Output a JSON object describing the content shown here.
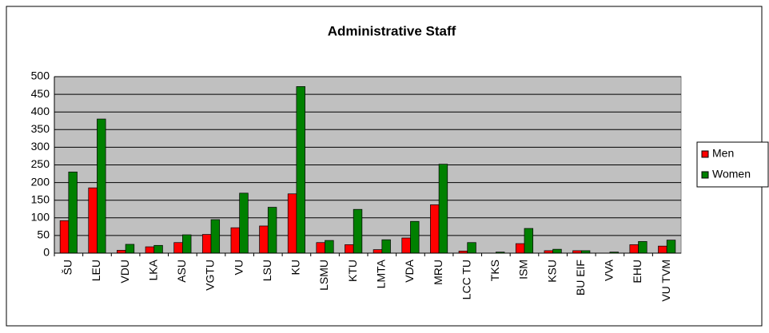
{
  "chart_data": {
    "type": "bar",
    "title": "Administrative Staff",
    "categories": [
      "ŠU",
      "LEU",
      "VDU",
      "LKA",
      "ASU",
      "VGTU",
      "VU",
      "LSU",
      "KU",
      "LSMU",
      "KTU",
      "LMTA",
      "VDA",
      "MRU",
      "LCC TU",
      "TKS",
      "ISM",
      "KSU",
      "BU EIF",
      "VVA",
      "EHU",
      "VU TVM"
    ],
    "series": [
      {
        "name": "Men",
        "color": "#ff0000",
        "values": [
          92,
          185,
          8,
          18,
          30,
          53,
          72,
          77,
          168,
          30,
          24,
          10,
          43,
          137,
          6,
          0,
          27,
          7,
          7,
          0,
          24,
          20
        ]
      },
      {
        "name": "Women",
        "color": "#008000",
        "values": [
          230,
          380,
          25,
          22,
          52,
          95,
          170,
          130,
          472,
          36,
          124,
          38,
          90,
          252,
          30,
          3,
          70,
          11,
          7,
          3,
          33,
          37
        ]
      }
    ],
    "ylim": [
      0,
      500
    ],
    "yticks": [
      0,
      50,
      100,
      150,
      200,
      250,
      300,
      350,
      400,
      450,
      500
    ],
    "grid": true,
    "legend": "right"
  }
}
